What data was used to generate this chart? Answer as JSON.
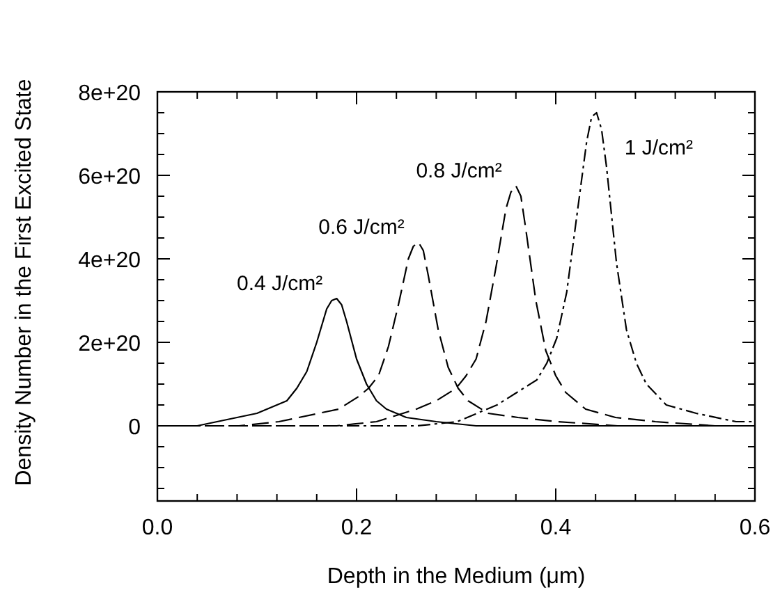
{
  "chart_data": {
    "type": "line",
    "xlabel": "Depth in the Medium (μm)",
    "ylabel": "Density Number in the First Excited State",
    "xlim": [
      0,
      0.6
    ],
    "ylim": [
      -1.8e+20,
      8e+20
    ],
    "xticks": [
      {
        "value": 0,
        "label": "0.0"
      },
      {
        "value": 0.04,
        "label": null
      },
      {
        "value": 0.08,
        "label": null
      },
      {
        "value": 0.12,
        "label": null
      },
      {
        "value": 0.16,
        "label": null
      },
      {
        "value": 0.2,
        "label": "0.2"
      },
      {
        "value": 0.24,
        "label": null
      },
      {
        "value": 0.28,
        "label": null
      },
      {
        "value": 0.32,
        "label": null
      },
      {
        "value": 0.36,
        "label": null
      },
      {
        "value": 0.4,
        "label": "0.4"
      },
      {
        "value": 0.44,
        "label": null
      },
      {
        "value": 0.48,
        "label": null
      },
      {
        "value": 0.52,
        "label": null
      },
      {
        "value": 0.56,
        "label": null
      },
      {
        "value": 0.6,
        "label": "0.6"
      }
    ],
    "yticks": [
      {
        "value": -1.5e+20,
        "label": null
      },
      {
        "value": -1e+20,
        "label": null
      },
      {
        "value": -5e+19,
        "label": null
      },
      {
        "value": 0,
        "label": "0"
      },
      {
        "value": 5e+19,
        "label": null
      },
      {
        "value": 1e+20,
        "label": null
      },
      {
        "value": 1.5e+20,
        "label": null
      },
      {
        "value": 2e+20,
        "label": "2e+20"
      },
      {
        "value": 2.5e+20,
        "label": null
      },
      {
        "value": 3e+20,
        "label": null
      },
      {
        "value": 3.5e+20,
        "label": null
      },
      {
        "value": 4e+20,
        "label": "4e+20"
      },
      {
        "value": 4.5e+20,
        "label": null
      },
      {
        "value": 5e+20,
        "label": null
      },
      {
        "value": 5.5e+20,
        "label": null
      },
      {
        "value": 6e+20,
        "label": "6e+20"
      },
      {
        "value": 6.5e+20,
        "label": null
      },
      {
        "value": 7e+20,
        "label": null
      },
      {
        "value": 7.5e+20,
        "label": null
      },
      {
        "value": 8e+20,
        "label": "8e+20"
      }
    ],
    "grid": false,
    "marker": "none",
    "series": [
      {
        "name": "0.4 J/cm²",
        "color": "#000000",
        "line_style": "solid",
        "x": [
          0,
          0.04,
          0.08,
          0.1,
          0.12,
          0.13,
          0.14,
          0.15,
          0.16,
          0.17,
          0.175,
          0.18,
          0.185,
          0.19,
          0.2,
          0.21,
          0.22,
          0.23,
          0.25,
          0.28,
          0.32,
          0.38,
          0.6
        ],
        "values": [
          0,
          0,
          2e+19,
          3e+19,
          5e+19,
          6e+19,
          9e+19,
          1.3e+20,
          2e+20,
          2.8e+20,
          3e+20,
          3.05e+20,
          2.9e+20,
          2.5e+20,
          1.6e+20,
          1e+20,
          6e+19,
          4e+19,
          2e+19,
          1e+19,
          0,
          0,
          0
        ]
      },
      {
        "name": "0.6 J/cm²",
        "color": "#000000",
        "line_style": "dashed",
        "x": [
          0,
          0.082,
          0.122,
          0.162,
          0.182,
          0.202,
          0.212,
          0.222,
          0.232,
          0.242,
          0.252,
          0.257,
          0.262,
          0.267,
          0.272,
          0.282,
          0.292,
          0.302,
          0.312,
          0.332,
          0.362,
          0.402,
          0.462,
          0.6
        ],
        "values": [
          0,
          0,
          1e+19,
          3e+19,
          4e+19,
          7e+19,
          9e+19,
          1.2e+20,
          1.9e+20,
          2.9e+20,
          4e+20,
          4.3e+20,
          4.4e+20,
          4.2e+20,
          3.6e+20,
          2.3e+20,
          1.4e+20,
          9e+19,
          6e+19,
          3e+19,
          2e+19,
          1e+19,
          0,
          0
        ]
      },
      {
        "name": "0.8 J/cm²",
        "color": "#000000",
        "line_style": "dashed",
        "x": [
          0,
          0.18,
          0.22,
          0.26,
          0.28,
          0.3,
          0.31,
          0.32,
          0.33,
          0.34,
          0.35,
          0.355,
          0.36,
          0.365,
          0.37,
          0.38,
          0.39,
          0.4,
          0.41,
          0.43,
          0.46,
          0.5,
          0.56,
          0.6
        ],
        "values": [
          0,
          0,
          1e+19,
          4e+19,
          6e+19,
          9e+19,
          1.2e+20,
          1.6e+20,
          2.5e+20,
          3.8e+20,
          5.2e+20,
          5.6e+20,
          5.75e+20,
          5.5e+20,
          4.7e+20,
          3e+20,
          1.8e+20,
          1.2e+20,
          8e+19,
          4e+19,
          2e+19,
          1e+19,
          0,
          0
        ]
      },
      {
        "name": "1 J/cm²",
        "color": "#000000",
        "line_style": "dashdot",
        "x": [
          0,
          0.261,
          0.301,
          0.341,
          0.361,
          0.381,
          0.391,
          0.401,
          0.411,
          0.421,
          0.431,
          0.436,
          0.441,
          0.446,
          0.451,
          0.461,
          0.471,
          0.481,
          0.491,
          0.511,
          0.541,
          0.581,
          0.6
        ],
        "values": [
          0,
          0,
          1e+19,
          5e+19,
          8e+19,
          1.1e+20,
          1.5e+20,
          2.1e+20,
          3.2e+20,
          5e+20,
          6.8e+20,
          7.4e+20,
          7.5e+20,
          7.1e+20,
          6.2e+20,
          3.9e+20,
          2.3e+20,
          1.5e+20,
          1e+20,
          5e+19,
          3e+19,
          1e+19,
          1e+19
        ]
      }
    ]
  }
}
